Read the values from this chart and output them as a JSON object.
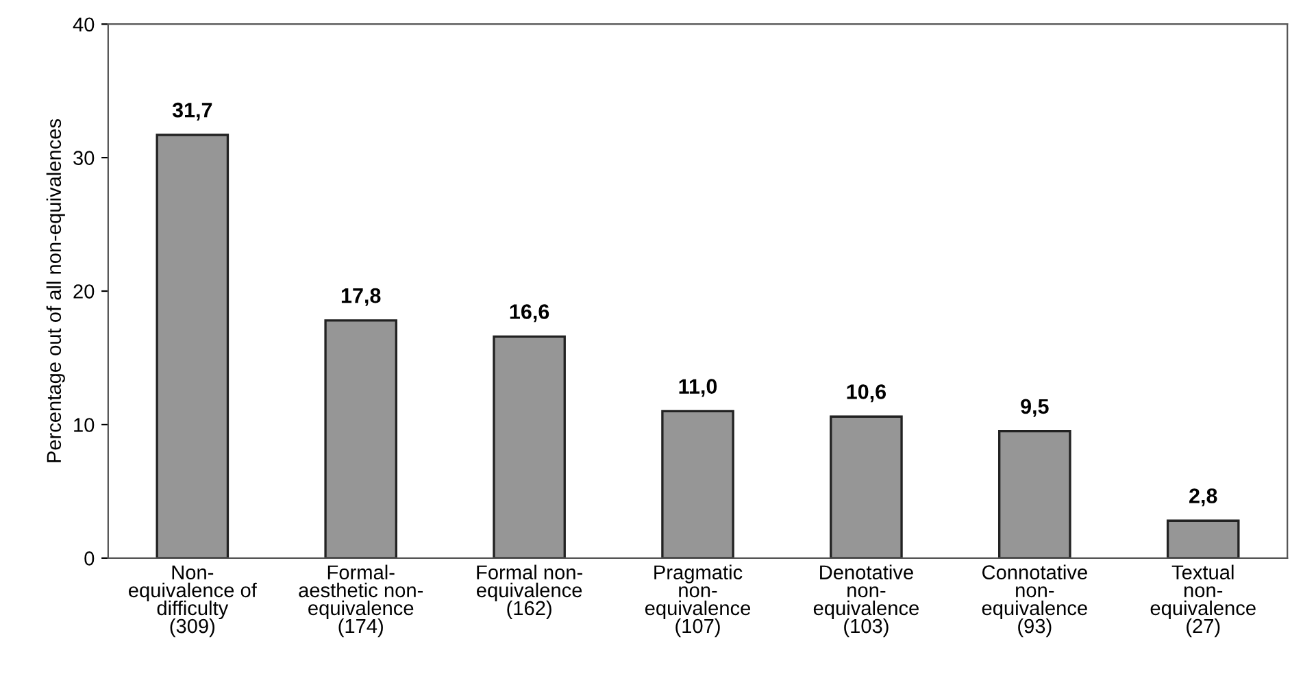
{
  "chart_data": {
    "type": "bar",
    "ylabel": "Percentage out of all non-equivalences",
    "categories": [
      "Non-\nequivalence of\ndifficulty\n(309)",
      "Formal-\naesthetic non-\nequivalence\n(174)",
      "Formal non-\nequivalence\n(162)",
      "Pragmatic\nnon-\nequivalence\n(107)",
      "Denotative\nnon-\nequivalence\n(103)",
      "Connotative\nnon-\nequivalence\n(93)",
      "Textual\nnon-\nequivalence\n(27)"
    ],
    "values": [
      31.7,
      17.8,
      16.6,
      11.0,
      10.6,
      9.5,
      2.8
    ],
    "value_labels": [
      "31,7",
      "17,8",
      "16,6",
      "11,0",
      "10,6",
      "9,5",
      "2,8"
    ],
    "color": "#969696",
    "ylim": [
      0,
      40
    ],
    "yticks": [
      0,
      10,
      20,
      30,
      40
    ],
    "grid": false
  }
}
